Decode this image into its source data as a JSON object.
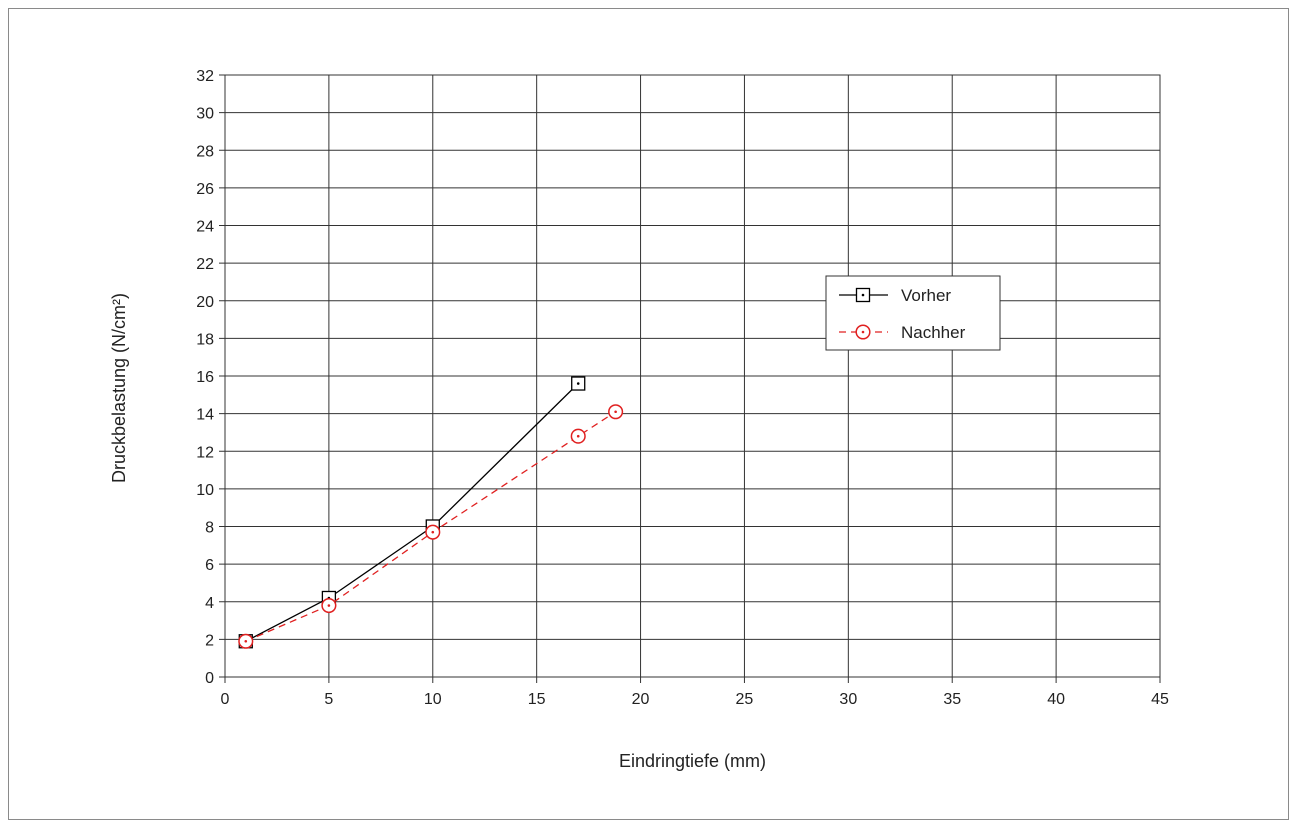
{
  "chart_data": {
    "type": "line",
    "xlabel": "Eindringtiefe (mm)",
    "ylabel": "Druckbelastung (N/cm²)",
    "xlim": [
      0,
      45
    ],
    "ylim": [
      0,
      32
    ],
    "x_ticks": [
      "0",
      "5",
      "10",
      "15",
      "20",
      "25",
      "30",
      "35",
      "40",
      "45"
    ],
    "y_ticks": [
      "0",
      "2",
      "4",
      "6",
      "8",
      "10",
      "12",
      "14",
      "16",
      "18",
      "20",
      "22",
      "24",
      "26",
      "28",
      "30",
      "32"
    ],
    "grid": true,
    "legend_position": "right",
    "series": [
      {
        "name": "Vorher",
        "color": "#000000",
        "line_style": "solid",
        "marker": "square-dot",
        "points": [
          {
            "x": 1,
            "y": 1.9
          },
          {
            "x": 5,
            "y": 4.2
          },
          {
            "x": 10,
            "y": 8.0
          },
          {
            "x": 17,
            "y": 15.6
          }
        ]
      },
      {
        "name": "Nachher",
        "color": "#e02020",
        "line_style": "dashed",
        "marker": "circle-dot",
        "points": [
          {
            "x": 1,
            "y": 1.9
          },
          {
            "x": 5,
            "y": 3.8
          },
          {
            "x": 10,
            "y": 7.7
          },
          {
            "x": 17,
            "y": 12.8
          },
          {
            "x": 18.8,
            "y": 14.1
          }
        ]
      }
    ]
  }
}
